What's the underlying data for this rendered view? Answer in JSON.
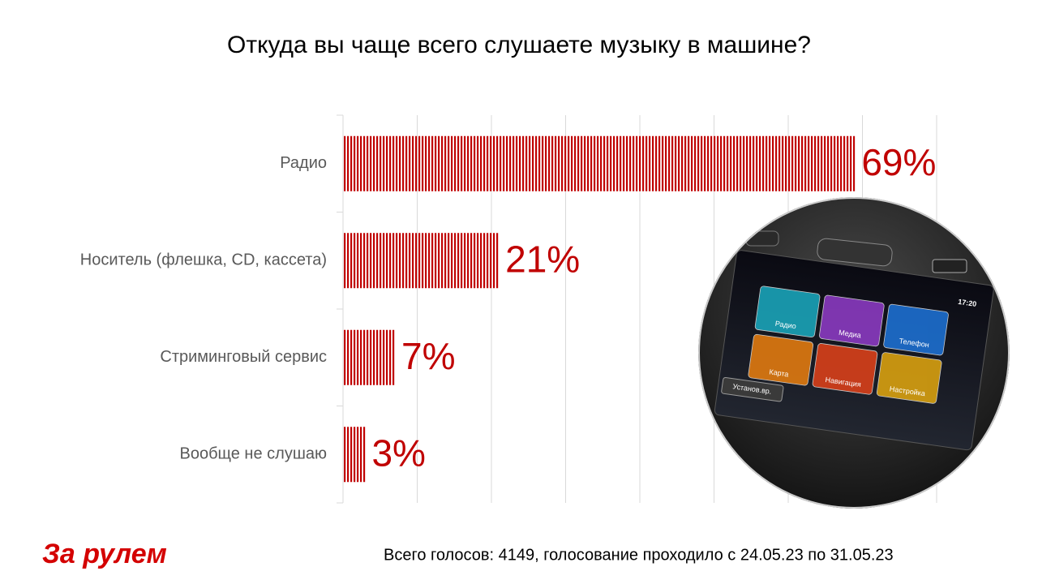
{
  "chart_data": {
    "type": "bar",
    "orientation": "horizontal",
    "title": "Откуда вы чаще всего слушаете музыку в машине?",
    "categories": [
      "Радио",
      "Носитель (флешка, CD, кассета)",
      "Стриминговый сервис",
      "Вообще не слушаю"
    ],
    "values": [
      69,
      21,
      7,
      3
    ],
    "value_labels": [
      "69%",
      "21%",
      "7%",
      "3%"
    ],
    "color": "#c00000",
    "xlim": [
      0,
      80
    ],
    "xticks": [
      0,
      10,
      20,
      30,
      40,
      50,
      60,
      70,
      80
    ],
    "grid": true
  },
  "footer": {
    "logo": "За рулем",
    "note": "Всего голосов: 4149, голосование проходило с 24.05.23 по 31.05.23"
  },
  "illustration": {
    "clock": "17:20",
    "tiles": [
      "Радио",
      "Медиа",
      "Телефон",
      "Карта",
      "Навигация",
      "Настройка"
    ],
    "button": "Установ.вр."
  }
}
